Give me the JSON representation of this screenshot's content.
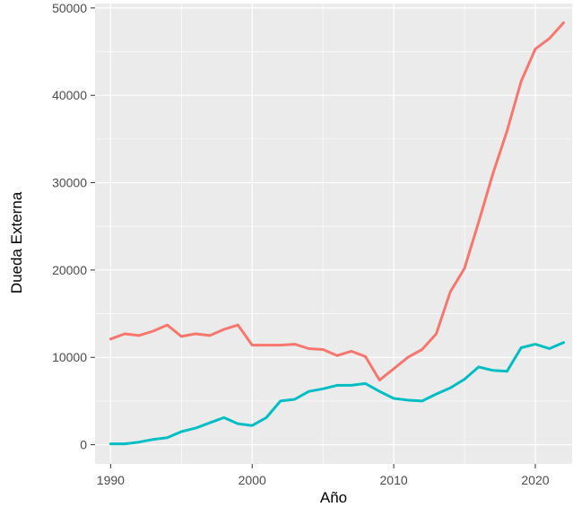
{
  "chart_data": {
    "type": "line",
    "title": "",
    "xlabel": "Año",
    "ylabel": "Dueda Externa",
    "xlim": [
      1988.9,
      2022.6
    ],
    "ylim": [
      -2200,
      50500
    ],
    "x_ticks": [
      1990,
      2000,
      2010,
      2020
    ],
    "y_ticks": [
      0,
      10000,
      20000,
      30000,
      40000,
      50000
    ],
    "x_tick_labels": [
      "1990",
      "2000",
      "2010",
      "2020"
    ],
    "y_tick_labels": [
      "0",
      "10000",
      "20000",
      "30000",
      "40000",
      "50000"
    ],
    "grid": true,
    "legend": "none",
    "x": [
      1990,
      1991,
      1992,
      1993,
      1994,
      1995,
      1996,
      1997,
      1998,
      1999,
      2000,
      2001,
      2002,
      2003,
      2004,
      2005,
      2006,
      2007,
      2008,
      2009,
      2010,
      2011,
      2012,
      2013,
      2014,
      2015,
      2016,
      2017,
      2018,
      2019,
      2020,
      2021,
      2022
    ],
    "series": [
      {
        "color": "#F8766D",
        "values": [
          12100,
          12700,
          12500,
          13000,
          13700,
          12400,
          12700,
          12500,
          13200,
          13700,
          11400,
          11400,
          11400,
          11500,
          11000,
          10900,
          10200,
          10700,
          10100,
          7400,
          8700,
          10000,
          10900,
          12700,
          17500,
          20200,
          25500,
          31000,
          35900,
          41600,
          45300,
          46500,
          48300
        ]
      },
      {
        "color": "#00BFC4",
        "values": [
          100,
          100,
          300,
          600,
          800,
          1500,
          1900,
          2500,
          3100,
          2400,
          2200,
          3100,
          5000,
          5200,
          6100,
          6400,
          6800,
          6800,
          7000,
          6100,
          5300,
          5100,
          5000,
          5800,
          6500,
          7500,
          8900,
          8500,
          8400,
          11100,
          11500,
          11000,
          11700
        ]
      }
    ]
  }
}
